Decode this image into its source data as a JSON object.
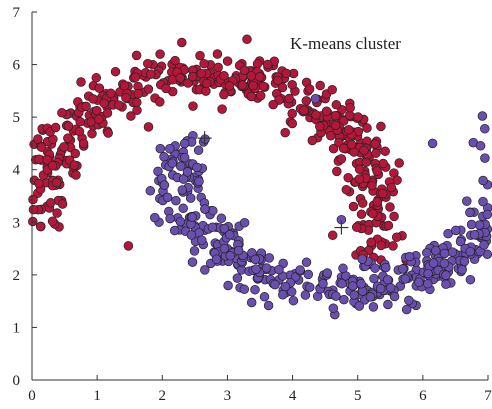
{
  "chart_data": {
    "type": "scatter",
    "title": "K-means   cluster",
    "title_position": "top-right",
    "xlabel": "",
    "ylabel": "",
    "xlim": [
      0,
      7
    ],
    "ylim": [
      0,
      7
    ],
    "x_ticks": [
      0,
      1,
      2,
      3,
      4,
      5,
      6,
      7
    ],
    "y_ticks": [
      0,
      1,
      2,
      3,
      4,
      5,
      6,
      7
    ],
    "grid": false,
    "legend": "none",
    "series": [
      {
        "color": "#b5173a",
        "count": 500,
        "shape": "upper-moon",
        "arc_center": [
          2.7,
          3.2
        ],
        "arc_radius": 2.6,
        "arc_angle_range_deg": [
          -18,
          182
        ],
        "noise": 0.22,
        "extra_points": [
          {
            "x": 1.48,
            "y": 2.55
          },
          {
            "x": 3.3,
            "y": 6.48
          },
          {
            "x": 2.3,
            "y": 6.42
          }
        ]
      },
      {
        "color": "#6a4fb0",
        "count": 500,
        "shape": "lower-moon",
        "arc_center": [
          4.8,
          4.3
        ],
        "arc_radius": 2.55,
        "arc_angle_range_deg": [
          178,
          378
        ],
        "noise": 0.22,
        "extra_points": [
          {
            "x": 4.35,
            "y": 5.35
          },
          {
            "x": 6.15,
            "y": 4.5
          },
          {
            "x": 4.75,
            "y": 3.05
          }
        ]
      }
    ],
    "centroids": [
      {
        "x": 2.65,
        "y": 4.6
      },
      {
        "x": 4.75,
        "y": 2.9
      }
    ]
  }
}
